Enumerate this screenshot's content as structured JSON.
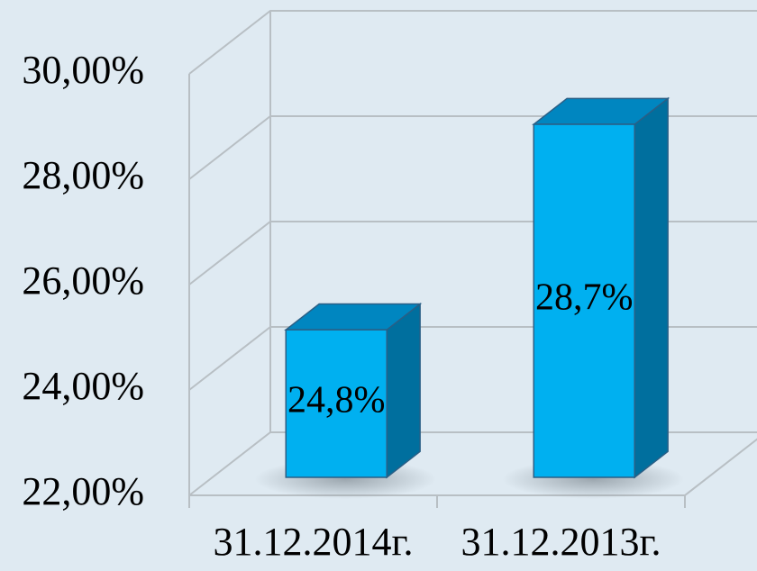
{
  "chart_data": {
    "type": "bar3d",
    "categories": [
      "31.12.2014г.",
      "31.12.2013г."
    ],
    "values": [
      24.8,
      28.7
    ],
    "value_labels": [
      "24,8%",
      "28,7%"
    ],
    "color": "#00b0f0",
    "ylim": [
      22,
      30
    ],
    "yticks": [
      {
        "value": 22,
        "label": "22,00%"
      },
      {
        "value": 24,
        "label": "24,00%"
      },
      {
        "value": 26,
        "label": "26,00%"
      },
      {
        "value": 28,
        "label": "28,00%"
      },
      {
        "value": 30,
        "label": "30,00%"
      }
    ],
    "grid": true
  }
}
